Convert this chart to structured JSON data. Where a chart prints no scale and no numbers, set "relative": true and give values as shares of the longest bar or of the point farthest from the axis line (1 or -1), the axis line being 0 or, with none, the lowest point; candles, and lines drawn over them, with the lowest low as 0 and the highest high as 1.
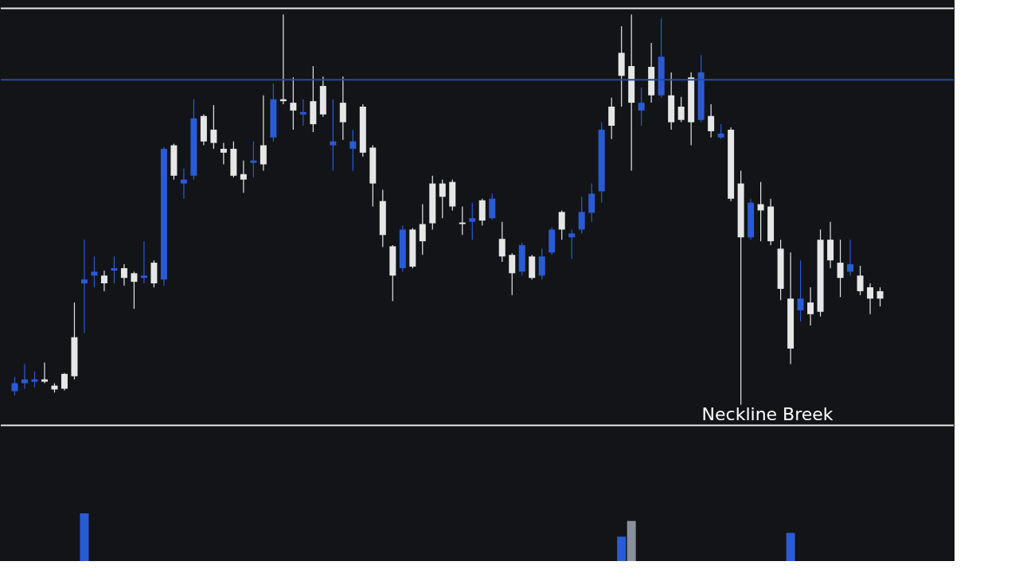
{
  "chart_data": [
    {
      "type": "candlestick",
      "relative": true,
      "categories": [
        null,
        null,
        null,
        null,
        null,
        null,
        null,
        null,
        null,
        null,
        null,
        null,
        null,
        null,
        null,
        null,
        null,
        null,
        null,
        null,
        null,
        null,
        null,
        null,
        null,
        null,
        null,
        null,
        null,
        null,
        null,
        null,
        null,
        null,
        null,
        null,
        null,
        null,
        null,
        null,
        null,
        null,
        null,
        null,
        null,
        null,
        null,
        null,
        null,
        null,
        null,
        null,
        null,
        null,
        null,
        null,
        null,
        null,
        null,
        null,
        null,
        null,
        null,
        null,
        null,
        null,
        null,
        null,
        null,
        null,
        null,
        null,
        null,
        null,
        null,
        null,
        null,
        null,
        null,
        null,
        null,
        null,
        null,
        null,
        null,
        null,
        null,
        null
      ],
      "ohlc": [
        [
          0.055,
          0.071,
          0.024,
          0.035
        ],
        [
          0.065,
          0.104,
          0.041,
          0.055
        ],
        [
          0.065,
          0.085,
          0.045,
          0.059
        ],
        [
          0.059,
          0.108,
          0.055,
          0.065
        ],
        [
          0.039,
          0.055,
          0.031,
          0.049
        ],
        [
          0.041,
          0.081,
          0.037,
          0.079
        ],
        [
          0.073,
          0.262,
          0.065,
          0.173
        ],
        [
          0.321,
          0.423,
          0.183,
          0.311
        ],
        [
          0.341,
          0.38,
          0.301,
          0.331
        ],
        [
          0.311,
          0.344,
          0.291,
          0.331
        ],
        [
          0.35,
          0.38,
          0.311,
          0.344
        ],
        [
          0.325,
          0.36,
          0.305,
          0.35
        ],
        [
          0.315,
          0.341,
          0.246,
          0.337
        ],
        [
          0.331,
          0.419,
          0.311,
          0.325
        ],
        [
          0.311,
          0.37,
          0.301,
          0.364
        ],
        [
          0.656,
          0.661,
          0.305,
          0.321
        ],
        [
          0.587,
          0.669,
          0.577,
          0.665
        ],
        [
          0.577,
          0.606,
          0.528,
          0.567
        ],
        [
          0.734,
          0.783,
          0.577,
          0.587
        ],
        [
          0.675,
          0.744,
          0.665,
          0.74
        ],
        [
          0.671,
          0.768,
          0.656,
          0.705
        ],
        [
          0.646,
          0.671,
          0.616,
          0.656
        ],
        [
          0.587,
          0.675,
          0.583,
          0.656
        ],
        [
          0.577,
          0.626,
          0.543,
          0.591
        ],
        [
          0.626,
          0.675,
          0.583,
          0.62
        ],
        [
          0.616,
          0.793,
          0.6,
          0.665
        ],
        [
          0.783,
          0.823,
          0.675,
          0.685
        ],
        [
          0.778,
          1.0,
          0.77,
          0.783
        ],
        [
          0.754,
          0.839,
          0.705,
          0.774
        ],
        [
          0.75,
          0.783,
          0.715,
          0.744
        ],
        [
          0.719,
          0.868,
          0.699,
          0.778
        ],
        [
          0.744,
          0.841,
          0.738,
          0.817
        ],
        [
          0.675,
          0.783,
          0.6,
          0.665
        ],
        [
          0.724,
          0.841,
          0.679,
          0.774
        ],
        [
          0.675,
          0.705,
          0.6,
          0.656
        ],
        [
          0.646,
          0.77,
          0.636,
          0.764
        ],
        [
          0.567,
          0.665,
          0.508,
          0.659
        ],
        [
          0.435,
          0.551,
          0.404,
          0.522
        ],
        [
          0.331,
          0.409,
          0.266,
          0.406
        ],
        [
          0.449,
          0.459,
          0.341,
          0.35
        ],
        [
          0.354,
          0.453,
          0.35,
          0.449
        ],
        [
          0.419,
          0.514,
          0.384,
          0.463
        ],
        [
          0.465,
          0.587,
          0.449,
          0.567
        ],
        [
          0.533,
          0.577,
          0.478,
          0.567
        ],
        [
          0.508,
          0.577,
          0.498,
          0.571
        ],
        [
          0.463,
          0.508,
          0.435,
          0.467
        ],
        [
          0.478,
          0.518,
          0.423,
          0.469
        ],
        [
          0.472,
          0.528,
          0.459,
          0.524
        ],
        [
          0.528,
          0.541,
          0.474,
          0.478
        ],
        [
          0.38,
          0.469,
          0.366,
          0.425
        ],
        [
          0.337,
          0.388,
          0.281,
          0.384
        ],
        [
          0.409,
          0.415,
          0.331,
          0.341
        ],
        [
          0.325,
          0.384,
          0.321,
          0.38
        ],
        [
          0.38,
          0.4,
          0.321,
          0.331
        ],
        [
          0.449,
          0.455,
          0.384,
          0.39
        ],
        [
          0.449,
          0.498,
          0.423,
          0.494
        ],
        [
          0.439,
          0.449,
          0.374,
          0.429
        ],
        [
          0.494,
          0.533,
          0.439,
          0.449
        ],
        [
          0.541,
          0.567,
          0.469,
          0.492
        ],
        [
          0.705,
          0.724,
          0.518,
          0.547
        ],
        [
          0.715,
          0.787,
          0.681,
          0.764
        ],
        [
          0.843,
          0.97,
          0.764,
          0.902
        ],
        [
          0.774,
          1.0,
          0.6,
          0.868
        ],
        [
          0.774,
          0.813,
          0.715,
          0.754
        ],
        [
          0.793,
          0.927,
          0.774,
          0.866
        ],
        [
          0.892,
          0.99,
          0.787,
          0.793
        ],
        [
          0.724,
          0.852,
          0.705,
          0.793
        ],
        [
          0.73,
          0.789,
          0.724,
          0.764
        ],
        [
          0.724,
          0.852,
          0.665,
          0.839
        ],
        [
          0.852,
          0.896,
          0.724,
          0.73
        ],
        [
          0.701,
          0.77,
          0.685,
          0.74
        ],
        [
          0.695,
          0.719,
          0.681,
          0.685
        ],
        [
          0.528,
          0.711,
          0.522,
          0.705
        ],
        [
          0.429,
          0.6,
          0.0,
          0.567
        ],
        [
          0.518,
          0.528,
          0.423,
          0.429
        ],
        [
          0.498,
          0.571,
          0.419,
          0.514
        ],
        [
          0.419,
          0.528,
          0.409,
          0.508
        ],
        [
          0.297,
          0.423,
          0.268,
          0.4
        ],
        [
          0.144,
          0.39,
          0.104,
          0.272
        ],
        [
          0.272,
          0.37,
          0.213,
          0.242
        ],
        [
          0.232,
          0.301,
          0.203,
          0.262
        ],
        [
          0.238,
          0.449,
          0.226,
          0.423
        ],
        [
          0.37,
          0.469,
          0.35,
          0.423
        ],
        [
          0.325,
          0.423,
          0.276,
          0.364
        ],
        [
          0.36,
          0.423,
          0.331,
          0.341
        ],
        [
          0.291,
          0.356,
          0.281,
          0.331
        ],
        [
          0.272,
          0.311,
          0.232,
          0.301
        ],
        [
          0.272,
          0.301,
          0.252,
          0.291
        ]
      ],
      "colors": [
        "#2a5bd7",
        "#2a5bd7",
        "#2a5bd7",
        "#e6e6e6",
        "#e6e6e6",
        "#e6e6e6",
        "#e6e6e6",
        "#2a5bd7",
        "#2a5bd7",
        "#e6e6e6",
        "#2a5bd7",
        "#e6e6e6",
        "#e6e6e6",
        "#2a5bd7",
        "#e6e6e6",
        "#2a5bd7",
        "#e6e6e6",
        "#2a5bd7",
        "#2a5bd7",
        "#e6e6e6",
        "#e6e6e6",
        "#e6e6e6",
        "#e6e6e6",
        "#e6e6e6",
        "#2a5bd7",
        "#e6e6e6",
        "#2a5bd7",
        "#e6e6e6",
        "#e6e6e6",
        "#2a5bd7",
        "#e6e6e6",
        "#e6e6e6",
        "#2a5bd7",
        "#e6e6e6",
        "#2a5bd7",
        "#e6e6e6",
        "#e6e6e6",
        "#e6e6e6",
        "#e6e6e6",
        "#2a5bd7",
        "#e6e6e6",
        "#e6e6e6",
        "#e6e6e6",
        "#e6e6e6",
        "#e6e6e6",
        "#e6e6e6",
        "#2a5bd7",
        "#e6e6e6",
        "#2a5bd7",
        "#e6e6e6",
        "#e6e6e6",
        "#2a5bd7",
        "#e6e6e6",
        "#2a5bd7",
        "#2a5bd7",
        "#e6e6e6",
        "#2a5bd7",
        "#2a5bd7",
        "#2a5bd7",
        "#2a5bd7",
        "#e6e6e6",
        "#e6e6e6",
        "#e6e6e6",
        "#2a5bd7",
        "#e6e6e6",
        "#2a5bd7",
        "#e6e6e6",
        "#e6e6e6",
        "#e6e6e6",
        "#2a5bd7",
        "#e6e6e6",
        "#2a5bd7",
        "#e6e6e6",
        "#e6e6e6",
        "#2a5bd7",
        "#e6e6e6",
        "#e6e6e6",
        "#e6e6e6",
        "#e6e6e6",
        "#2a5bd7",
        "#e6e6e6",
        "#e6e6e6",
        "#e6e6e6",
        "#e6e6e6",
        "#2a5bd7",
        "#e6e6e6",
        "#e6e6e6",
        "#e6e6e6"
      ],
      "ref_lines": [
        {
          "axis": "y",
          "value": -0.053,
          "label": "Neckline Breek",
          "color": "#e6e6e6"
        },
        {
          "axis": "y",
          "value": 1.016,
          "label": null,
          "color": "#e6e6e6"
        },
        {
          "axis": "y",
          "value": 0.833,
          "label": null,
          "color": "#1f4f9e"
        }
      ]
    },
    {
      "type": "bar",
      "relative": true,
      "categories": [
        null,
        null,
        null,
        null,
        null,
        null,
        null,
        null,
        null,
        null,
        null,
        null,
        null,
        null,
        null,
        null,
        null,
        null,
        null,
        null,
        null,
        null,
        null,
        null,
        null,
        null,
        null,
        null,
        null,
        null,
        null,
        null,
        null,
        null,
        null,
        null,
        null,
        null,
        null,
        null,
        null,
        null,
        null,
        null,
        null,
        null,
        null,
        null,
        null,
        null,
        null,
        null,
        null,
        null,
        null,
        null,
        null,
        null,
        null,
        null,
        null,
        null,
        null,
        null,
        null,
        null,
        null,
        null,
        null,
        null,
        null,
        null,
        null,
        null,
        null,
        null,
        null,
        null,
        null,
        null,
        null,
        null,
        null,
        null,
        null,
        null,
        null,
        null
      ],
      "values": [
        null,
        null,
        null,
        null,
        null,
        null,
        null,
        1,
        null,
        null,
        null,
        null,
        null,
        null,
        null,
        null,
        null,
        null,
        null,
        null,
        null,
        null,
        null,
        null,
        null,
        null,
        null,
        null,
        null,
        null,
        null,
        null,
        null,
        null,
        null,
        null,
        null,
        null,
        null,
        null,
        null,
        null,
        null,
        null,
        null,
        null,
        null,
        null,
        null,
        null,
        null,
        null,
        null,
        null,
        null,
        null,
        null,
        null,
        null,
        null,
        null,
        0.51,
        0.84,
        null,
        null,
        null,
        null,
        null,
        null,
        null,
        null,
        null,
        null,
        null,
        null,
        null,
        null,
        null,
        0.59,
        null,
        null,
        null,
        null,
        null,
        null,
        null,
        null,
        null
      ],
      "colors": [
        "#2a5bd7",
        "#2a5bd7",
        "#2a5bd7",
        "#2a5bd7",
        "#2a5bd7",
        "#2a5bd7",
        "#2a5bd7",
        "#2a5bd7",
        "#2a5bd7",
        "#2a5bd7",
        "#2a5bd7",
        "#2a5bd7",
        "#2a5bd7",
        "#2a5bd7",
        "#2a5bd7",
        "#2a5bd7",
        "#2a5bd7",
        "#2a5bd7",
        "#2a5bd7",
        "#2a5bd7",
        "#2a5bd7",
        "#2a5bd7",
        "#2a5bd7",
        "#2a5bd7",
        "#2a5bd7",
        "#2a5bd7",
        "#2a5bd7",
        "#2a5bd7",
        "#2a5bd7",
        "#2a5bd7",
        "#2a5bd7",
        "#2a5bd7",
        "#2a5bd7",
        "#2a5bd7",
        "#2a5bd7",
        "#2a5bd7",
        "#2a5bd7",
        "#2a5bd7",
        "#2a5bd7",
        "#2a5bd7",
        "#2a5bd7",
        "#2a5bd7",
        "#2a5bd7",
        "#2a5bd7",
        "#2a5bd7",
        "#2a5bd7",
        "#2a5bd7",
        "#2a5bd7",
        "#2a5bd7",
        "#2a5bd7",
        "#2a5bd7",
        "#2a5bd7",
        "#2a5bd7",
        "#2a5bd7",
        "#2a5bd7",
        "#2a5bd7",
        "#2a5bd7",
        "#2a5bd7",
        "#2a5bd7",
        "#2a5bd7",
        "#2a5bd7",
        "#2a5bd7",
        "#8a8f9c",
        "#2a5bd7",
        "#2a5bd7",
        "#2a5bd7",
        "#2a5bd7",
        "#2a5bd7",
        "#2a5bd7",
        "#2a5bd7",
        "#2a5bd7",
        "#2a5bd7",
        "#2a5bd7",
        "#2a5bd7",
        "#2a5bd7",
        "#2a5bd7",
        "#2a5bd7",
        "#2a5bd7",
        "#2a5bd7",
        "#2a5bd7",
        "#2a5bd7",
        "#2a5bd7",
        "#2a5bd7",
        "#2a5bd7",
        "#2a5bd7",
        "#2a5bd7",
        "#2a5bd7",
        "#2a5bd7"
      ]
    }
  ]
}
